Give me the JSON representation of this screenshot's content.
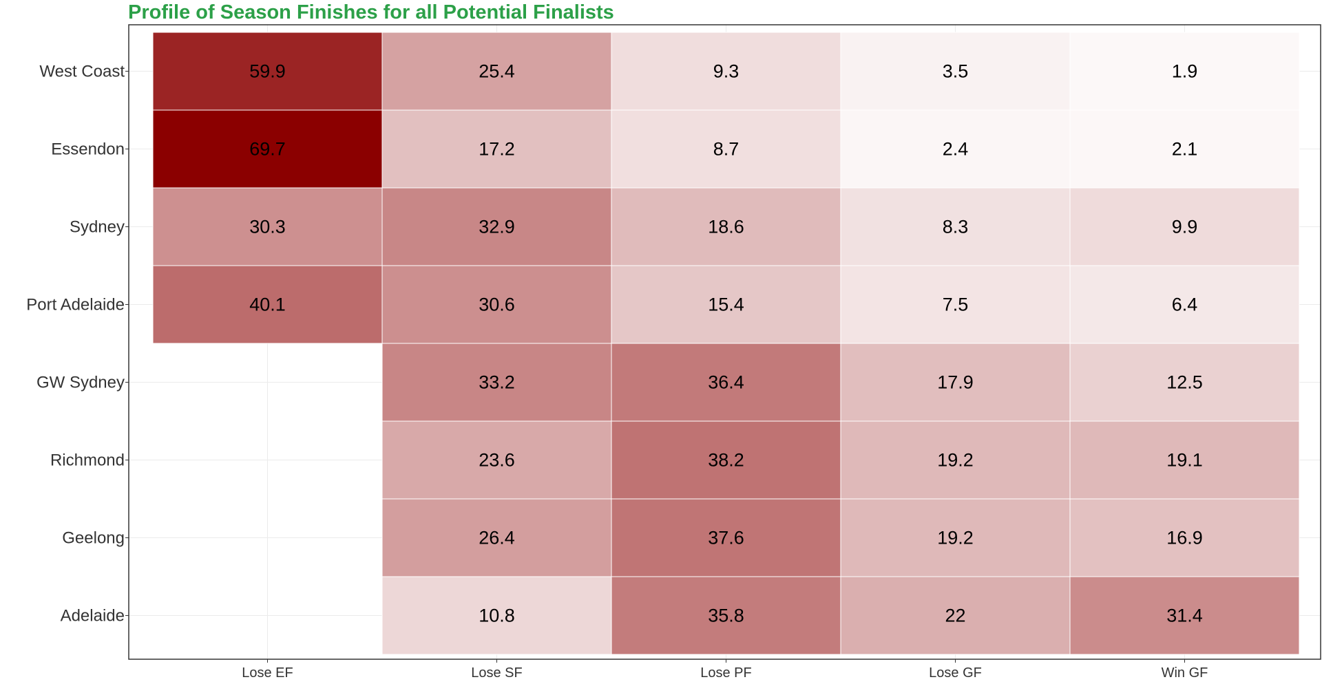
{
  "chart_data": {
    "type": "heatmap",
    "title": "Profile of Season Finishes for all Potential Finalists",
    "title_color": "#2ca048",
    "xlabel": "",
    "ylabel": "",
    "x_categories": [
      "Lose EF",
      "Lose SF",
      "Lose PF",
      "Lose GF",
      "Win GF"
    ],
    "y_categories": [
      "West Coast",
      "Essendon",
      "Sydney",
      "Port Adelaide",
      "GW Sydney",
      "Richmond",
      "Geelong",
      "Adelaide"
    ],
    "values": [
      [
        59.9,
        25.4,
        9.3,
        3.5,
        1.9
      ],
      [
        69.7,
        17.2,
        8.7,
        2.4,
        2.1
      ],
      [
        30.3,
        32.9,
        18.6,
        8.3,
        9.9
      ],
      [
        40.1,
        30.6,
        15.4,
        7.5,
        6.4
      ],
      [
        null,
        33.2,
        36.4,
        17.9,
        12.5
      ],
      [
        null,
        23.6,
        38.2,
        19.2,
        19.1
      ],
      [
        null,
        26.4,
        37.6,
        19.2,
        16.9
      ],
      [
        null,
        10.8,
        35.8,
        22,
        31.4
      ]
    ],
    "color_scale": {
      "low": "#ffffff",
      "high": "#8b0000",
      "min": 0,
      "max": 69.7
    },
    "grid": true,
    "legend": "none"
  }
}
